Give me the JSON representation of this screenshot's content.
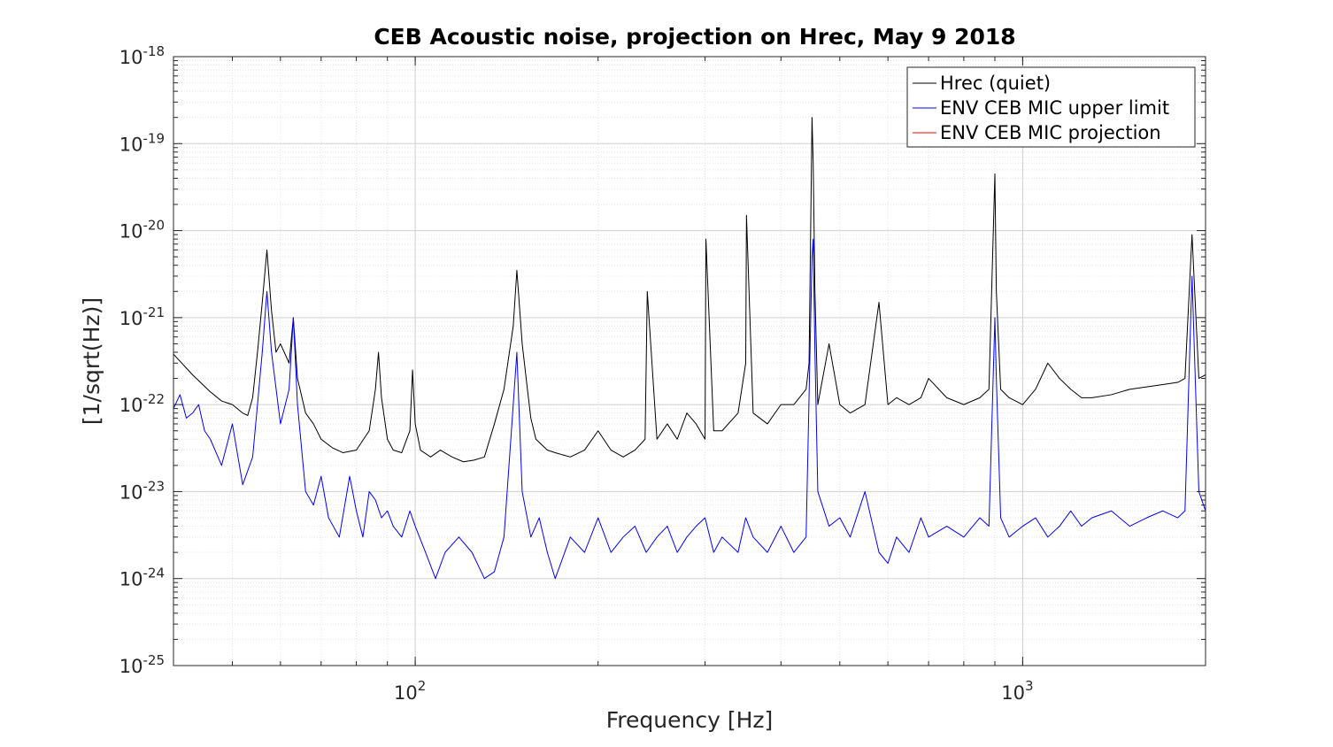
{
  "chart_data": {
    "type": "line",
    "title": "CEB Acoustic noise, projection on Hrec, May 9 2018",
    "xlabel": "Frequency [Hz]",
    "ylabel": "[1/sqrt(Hz)]",
    "x_scale": "log",
    "y_scale": "log",
    "xlim": [
      40,
      2000
    ],
    "ylim": [
      1e-25,
      1e-18
    ],
    "grid": true,
    "minor_grid": true,
    "legend_position": "top-right",
    "x_ticks": [
      {
        "value": 100,
        "base": "10",
        "exp": "2"
      },
      {
        "value": 1000,
        "base": "10",
        "exp": "3"
      }
    ],
    "y_ticks": [
      {
        "value": 1e-25,
        "base": "10",
        "exp": "-25"
      },
      {
        "value": 1e-24,
        "base": "10",
        "exp": "-24"
      },
      {
        "value": 1e-23,
        "base": "10",
        "exp": "-23"
      },
      {
        "value": 1e-22,
        "base": "10",
        "exp": "-22"
      },
      {
        "value": 1e-21,
        "base": "10",
        "exp": "-21"
      },
      {
        "value": 1e-20,
        "base": "10",
        "exp": "-20"
      },
      {
        "value": 1e-19,
        "base": "10",
        "exp": "-19"
      },
      {
        "value": 1e-18,
        "base": "10",
        "exp": "-18"
      }
    ],
    "series": [
      {
        "name": "Hrec (quiet)",
        "color": "#000000",
        "x": [
          40,
          43,
          46,
          48,
          50,
          52,
          53,
          54,
          55,
          56,
          57,
          58,
          59,
          60,
          62,
          63,
          64,
          66,
          68,
          70,
          73,
          76,
          80,
          84,
          86,
          87,
          88,
          90,
          92,
          95,
          98,
          99,
          100,
          102,
          106,
          110,
          115,
          120,
          125,
          130,
          135,
          140,
          145,
          147,
          150,
          153,
          155,
          158,
          165,
          170,
          180,
          190,
          200,
          210,
          220,
          230,
          239,
          241,
          250,
          260,
          270,
          280,
          290,
          300,
          301,
          310,
          320,
          340,
          350,
          351,
          360,
          380,
          400,
          420,
          440,
          445,
          450,
          452,
          455,
          460,
          480,
          500,
          520,
          550,
          580,
          600,
          620,
          650,
          680,
          700,
          750,
          800,
          850,
          880,
          900,
          905,
          920,
          950,
          1000,
          1050,
          1100,
          1150,
          1200,
          1250,
          1300,
          1400,
          1500,
          1600,
          1700,
          1800,
          1850,
          1900,
          1950,
          2000
        ],
        "y": [
          3.8e-22,
          2.2e-22,
          1.4e-22,
          1.1e-22,
          1e-22,
          8e-23,
          7.5e-23,
          1.2e-22,
          4e-22,
          1.5e-21,
          6e-21,
          1.2e-21,
          4e-22,
          5e-22,
          3e-22,
          1e-21,
          2e-22,
          8e-23,
          6e-23,
          4e-23,
          3.2e-23,
          2.8e-23,
          3e-23,
          5e-23,
          1.5e-22,
          4e-22,
          1.2e-22,
          4e-23,
          3e-23,
          2.8e-23,
          5e-23,
          2.5e-22,
          6e-23,
          3e-23,
          2.5e-23,
          3e-23,
          2.5e-23,
          2.2e-23,
          2.3e-23,
          2.5e-23,
          6e-23,
          1.5e-22,
          8e-22,
          3.5e-21,
          5e-22,
          1.5e-22,
          7e-23,
          4e-23,
          3e-23,
          2.8e-23,
          2.5e-23,
          3e-23,
          5e-23,
          3e-23,
          2.5e-23,
          3e-23,
          4e-23,
          2e-21,
          4e-23,
          6e-23,
          4e-23,
          8e-23,
          6e-23,
          4e-23,
          8e-21,
          5e-23,
          5e-23,
          8e-23,
          3e-22,
          1.5e-20,
          8e-23,
          6e-23,
          1e-22,
          1e-22,
          1.5e-22,
          3e-22,
          2e-19,
          6e-20,
          2e-21,
          1e-22,
          5e-22,
          1e-22,
          8e-23,
          1e-22,
          1.5e-21,
          1e-22,
          1.2e-22,
          1e-22,
          1.2e-22,
          2e-22,
          1.2e-22,
          1e-22,
          1.2e-22,
          1.5e-22,
          4.5e-20,
          2e-21,
          1.5e-22,
          1.2e-22,
          1e-22,
          1.5e-22,
          3e-22,
          2e-22,
          1.5e-22,
          1.2e-22,
          1.2e-22,
          1.3e-22,
          1.5e-22,
          1.6e-22,
          1.7e-22,
          1.8e-22,
          2e-22,
          9e-21,
          2e-22,
          2.2e-22
        ]
      },
      {
        "name": "ENV CEB MIC upper limit",
        "color": "#0000ff",
        "x": [
          40,
          41,
          42,
          43,
          44,
          45,
          46,
          48,
          50,
          52,
          54,
          55,
          56,
          57,
          58,
          60,
          62,
          63,
          64,
          66,
          68,
          70,
          72,
          75,
          78,
          80,
          82,
          84,
          86,
          88,
          90,
          92,
          95,
          98,
          100,
          104,
          108,
          112,
          118,
          124,
          130,
          135,
          140,
          145,
          147,
          150,
          155,
          160,
          165,
          170,
          180,
          190,
          200,
          210,
          220,
          230,
          240,
          250,
          260,
          270,
          280,
          290,
          300,
          310,
          320,
          340,
          350,
          360,
          380,
          400,
          420,
          440,
          450,
          452,
          455,
          460,
          480,
          500,
          520,
          550,
          580,
          600,
          620,
          650,
          680,
          700,
          750,
          800,
          850,
          880,
          900,
          905,
          920,
          950,
          1000,
          1050,
          1100,
          1150,
          1200,
          1250,
          1300,
          1400,
          1500,
          1600,
          1700,
          1800,
          1850,
          1900,
          1950,
          2000
        ],
        "y": [
          9e-23,
          1.3e-22,
          7e-23,
          8e-23,
          1e-22,
          5e-23,
          4e-23,
          2e-23,
          6e-23,
          1.2e-23,
          2.5e-23,
          1e-22,
          4e-22,
          2e-21,
          4e-22,
          6e-23,
          1.5e-22,
          1e-21,
          1e-22,
          1e-23,
          7e-24,
          1.5e-23,
          5e-24,
          3e-24,
          1.5e-23,
          6e-24,
          3e-24,
          1e-23,
          8e-24,
          5e-24,
          6e-24,
          4e-24,
          3e-24,
          6e-24,
          4e-24,
          2e-24,
          1e-24,
          2e-24,
          3e-24,
          2e-24,
          1e-24,
          1.2e-24,
          3e-24,
          1e-22,
          4e-22,
          1e-23,
          3e-24,
          5e-24,
          2e-24,
          1e-24,
          3e-24,
          2e-24,
          5e-24,
          2e-24,
          3e-24,
          4e-24,
          2e-24,
          3e-24,
          4e-24,
          2e-24,
          3e-24,
          4e-24,
          5e-24,
          2e-24,
          3e-24,
          2e-24,
          5e-24,
          3e-24,
          2e-24,
          4e-24,
          2e-24,
          3e-24,
          5e-21,
          8e-21,
          4e-22,
          1e-23,
          4e-24,
          5e-24,
          3e-24,
          1e-23,
          2e-24,
          1.5e-24,
          3e-24,
          2e-24,
          5e-24,
          3e-24,
          4e-24,
          3e-24,
          5e-24,
          4e-24,
          1e-21,
          2e-22,
          5e-24,
          3e-24,
          4e-24,
          5e-24,
          3e-24,
          4e-24,
          6e-24,
          4e-24,
          5e-24,
          6e-24,
          4e-24,
          5e-24,
          6e-24,
          5e-24,
          6e-24,
          3e-21,
          1e-23,
          6e-24
        ]
      },
      {
        "name": "ENV CEB MIC projection",
        "color": "#ff0000",
        "x": [],
        "y": []
      }
    ]
  }
}
